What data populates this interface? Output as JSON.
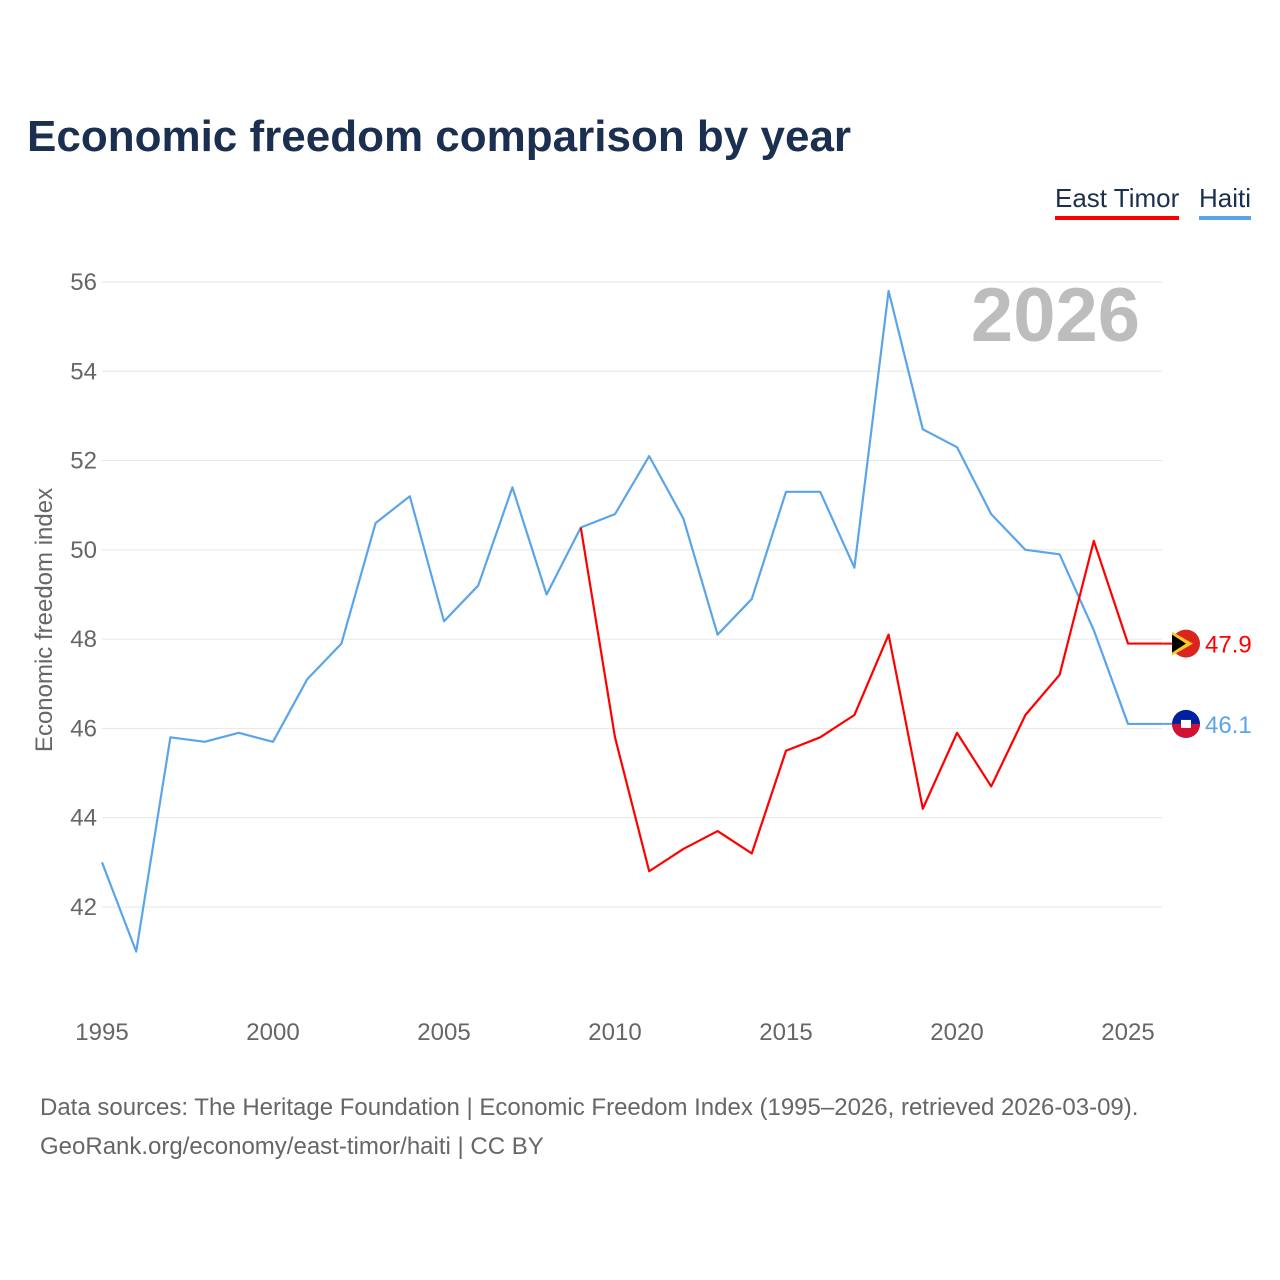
{
  "title": "Economic freedom comparison by year",
  "legend": [
    "East Timor",
    "Haiti"
  ],
  "footer": {
    "line1": "Data sources: The Heritage Foundation | Economic Freedom Index (1995–2026, retrieved 2026-03-09).",
    "line2": "GeoRank.org/economy/east-timor/haiti | CC BY"
  },
  "chart_data": {
    "type": "line",
    "title": "Economic freedom comparison by year",
    "ylabel": "Economic freedom index",
    "xlabel": "",
    "year_watermark": "2026",
    "xlim": [
      1995,
      2026
    ],
    "ylim": [
      40,
      56
    ],
    "xticks": [
      1995,
      2000,
      2005,
      2010,
      2015,
      2020,
      2025
    ],
    "yticks": [
      42,
      44,
      46,
      48,
      50,
      52,
      54,
      56
    ],
    "grid": true,
    "legend_position": "top-right",
    "series": [
      {
        "name": "East Timor",
        "color": "#ff0000",
        "end_label": "47.9",
        "x": [
          2009,
          2010,
          2011,
          2012,
          2013,
          2014,
          2015,
          2016,
          2017,
          2018,
          2019,
          2020,
          2021,
          2022,
          2023,
          2024,
          2025,
          2026
        ],
        "values": [
          50.5,
          45.8,
          42.8,
          43.3,
          43.7,
          43.2,
          45.5,
          45.8,
          46.3,
          48.1,
          44.2,
          45.9,
          44.7,
          46.3,
          47.2,
          50.2,
          47.9,
          47.9
        ]
      },
      {
        "name": "Haiti",
        "color": "#5aa5ea",
        "end_label": "46.1",
        "x": [
          1995,
          1996,
          1997,
          1998,
          1999,
          2000,
          2001,
          2002,
          2003,
          2004,
          2005,
          2006,
          2007,
          2008,
          2009,
          2010,
          2011,
          2012,
          2013,
          2014,
          2015,
          2016,
          2017,
          2018,
          2019,
          2020,
          2021,
          2022,
          2023,
          2024,
          2025,
          2026
        ],
        "values": [
          43.0,
          41.0,
          45.8,
          45.7,
          45.9,
          45.7,
          47.1,
          47.9,
          50.6,
          51.2,
          48.4,
          49.2,
          51.4,
          49.0,
          50.5,
          50.8,
          52.1,
          50.7,
          48.1,
          48.9,
          51.3,
          51.3,
          49.6,
          55.8,
          52.7,
          52.3,
          50.8,
          50.0,
          49.9,
          48.2,
          46.1,
          46.1
        ]
      }
    ]
  }
}
